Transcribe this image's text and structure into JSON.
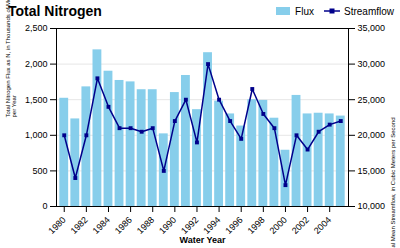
{
  "chart_data": {
    "type": "bar",
    "title": "Total Nitrogen",
    "xlabel": "Water Year",
    "ylabel": "Total Nitrogen Flux as N, in Thousands of Metric Tons\nper Year",
    "y2label": "Annual Mean Streamflow, in Cubic Meters per Second",
    "x": [
      1980,
      1981,
      1982,
      1983,
      1984,
      1985,
      1986,
      1987,
      1988,
      1989,
      1990,
      1991,
      1992,
      1993,
      1994,
      1995,
      1996,
      1997,
      1998,
      1999,
      2000,
      2001,
      2002,
      2003,
      2004,
      2005
    ],
    "xlim": [
      1979.3,
      2005.7
    ],
    "xticks": [
      1980,
      1982,
      1984,
      1986,
      1988,
      1990,
      1992,
      1994,
      1996,
      1998,
      2000,
      2002,
      2004
    ],
    "ylim": [
      0,
      2500
    ],
    "yticks": [
      0,
      500,
      {
        "value": 1000,
        "label": "1,000"
      },
      {
        "value": 1500,
        "label": "1,500"
      },
      {
        "value": 2000,
        "label": "2,000"
      },
      {
        "value": 2500,
        "label": "2,500"
      }
    ],
    "y2lim": [
      10000,
      35000
    ],
    "y2ticks": [
      {
        "value": 10000,
        "label": "10,000"
      },
      {
        "value": 15000,
        "label": "15,000"
      },
      {
        "value": 20000,
        "label": "20,000"
      },
      {
        "value": 25000,
        "label": "25,000"
      },
      {
        "value": 30000,
        "label": "30,000"
      },
      {
        "value": 35000,
        "label": "35,000"
      }
    ],
    "grid": true,
    "legend": "upper right",
    "series": [
      {
        "name": "Flux",
        "type": "bar",
        "color": "#87CEEB",
        "values": [
          1520,
          1230,
          1680,
          2200,
          1900,
          1770,
          1750,
          1640,
          1640,
          1020,
          1600,
          1840,
          1360,
          2160,
          1480,
          1300,
          1130,
          1500,
          1490,
          1240,
          790,
          1560,
          1300,
          1310,
          1300,
          1270
        ]
      },
      {
        "name": "Streamflow",
        "type": "line",
        "color": "#00008B",
        "marker": "square",
        "line_style": "solid",
        "axis": "y2",
        "values": [
          20000,
          14000,
          20000,
          28000,
          24000,
          21000,
          21000,
          20500,
          21000,
          15000,
          22000,
          25000,
          19000,
          30000,
          25000,
          22000,
          19500,
          26500,
          23000,
          21000,
          13000,
          20000,
          18000,
          20500,
          21500,
          22000
        ]
      }
    ]
  }
}
